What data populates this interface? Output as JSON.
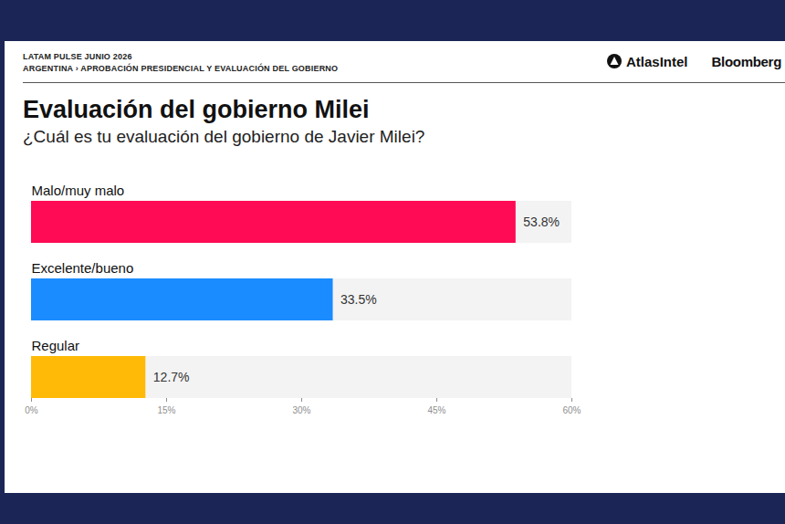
{
  "chart_data": {
    "type": "bar",
    "orientation": "horizontal",
    "kicker": "LATAM PULSE JUNIO 2026",
    "breadcrumb": "ARGENTINA › APROBACIÓN PRESIDENCIAL Y EVALUACIÓN DEL GOBIERNO",
    "logos": [
      "AtlasIntel",
      "Bloomberg"
    ],
    "title": "Evaluación del gobierno Milei",
    "subtitle": "¿Cuál es tu evaluación del gobierno de Javier Milei?",
    "categories": [
      "Malo/muy malo",
      "Excelente/bueno",
      "Regular"
    ],
    "values": [
      53.8,
      33.5,
      12.7
    ],
    "value_labels": [
      "53.8%",
      "33.5%",
      "12.7%"
    ],
    "colors": [
      "#ff0a54",
      "#1a8cff",
      "#ffba08"
    ],
    "xlim": [
      0,
      60
    ],
    "xticks": [
      {
        "value": 0,
        "label": "0%"
      },
      {
        "value": 15,
        "label": "15%"
      },
      {
        "value": 30,
        "label": "30%"
      },
      {
        "value": 45,
        "label": "45%"
      },
      {
        "value": 60,
        "label": "60%"
      }
    ],
    "grid": false,
    "data_labels": true
  }
}
